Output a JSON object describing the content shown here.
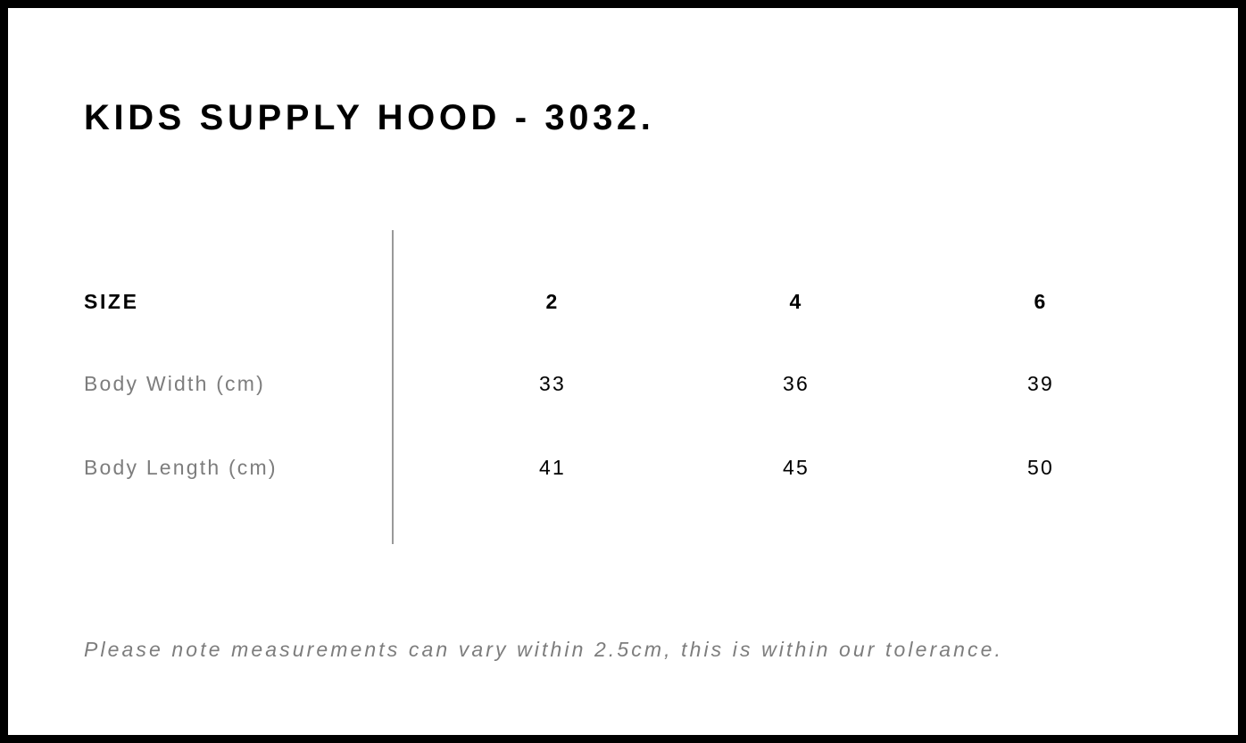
{
  "title": "KIDS SUPPLY HOOD - 3032.",
  "table": {
    "header": {
      "label": "SIZE",
      "values": [
        "2",
        "4",
        "6"
      ]
    },
    "rows": [
      {
        "label": "Body Width (cm)",
        "values": [
          "33",
          "36",
          "39"
        ]
      },
      {
        "label": "Body Length (cm)",
        "values": [
          "41",
          "45",
          "50"
        ]
      }
    ]
  },
  "note": "Please note measurements can vary within 2.5cm, this is within our tolerance."
}
